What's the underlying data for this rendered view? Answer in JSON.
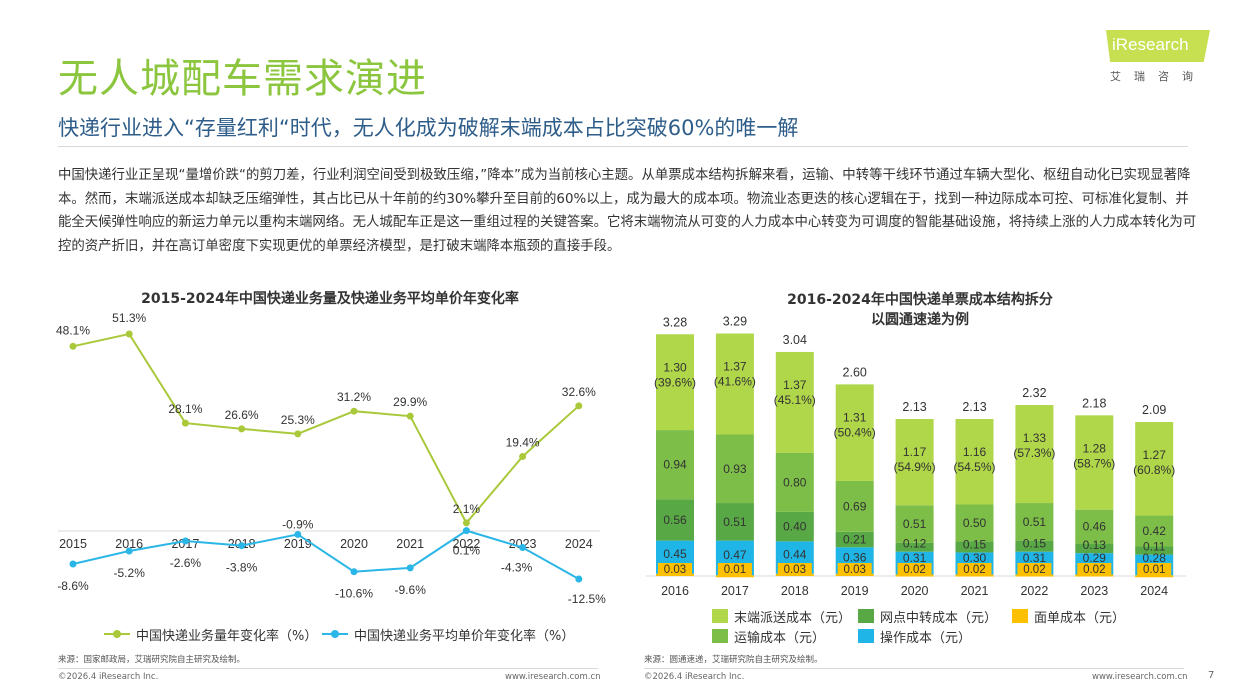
{
  "header": {
    "title": "无人城配车需求演进",
    "subtitle": "快递行业进入“存量红利“时代，无人化成为破解末端成本占比突破60%的唯一解",
    "logo_text": "iResearch",
    "logo_sub": "艾瑞咨询"
  },
  "paragraph": "中国快递行业正呈现“量增价跌“的剪刀差，行业利润空间受到极致压缩，”降本”成为当前核心主题。从单票成本结构拆解来看，运输、中转等干线环节通过车辆大型化、枢纽自动化已实现显著降本。然而，末端派送成本却缺乏压缩弹性，其占比已从十年前的约30%攀升至目前的60%以上，成为最大的成本项。物流业态更迭的核心逻辑在于，找到一种边际成本可控、可标准化复制、并能全天候弹性响应的新运力单元以重构末端网络。无人城配车正是这一重组过程的关键答案。它将末端物流从可变的人力成本中心转变为可调度的智能基础设施，将持续上涨的人力成本转化为可控的资产折旧，并在高订单密度下实现更优的单票经济模型，是打破末端降本瓶颈的直接手段。",
  "chart_data": [
    {
      "type": "line",
      "title": "2015-2024年中国快递业务量及快递业务平均单价年变化率",
      "x": [
        "2015",
        "2016",
        "2017",
        "2018",
        "2019",
        "2020",
        "2021",
        "2022",
        "2023",
        "2024"
      ],
      "series": [
        {
          "name": "中国快递业务量年变化率（%）",
          "values": [
            48.1,
            51.3,
            28.1,
            26.6,
            25.3,
            31.2,
            29.9,
            2.1,
            19.4,
            32.6
          ],
          "labels": [
            "48.1%",
            "51.3%",
            "28.1%",
            "26.6%",
            "25.3%",
            "31.2%",
            "29.9%",
            "2.1%",
            "19.4%",
            "32.6%"
          ],
          "color": "#a9c93b"
        },
        {
          "name": "中国快递业务平均单价年变化率（%）",
          "values": [
            -8.6,
            -5.2,
            -2.6,
            -3.8,
            -0.9,
            -10.6,
            -9.6,
            0.1,
            -4.3,
            -12.5
          ],
          "labels": [
            "-8.6%",
            "-5.2%",
            "-2.6%",
            "-3.8%",
            "-0.9%",
            "-10.6%",
            "-9.6%",
            "0.1%",
            "-4.3%",
            "-12.5%"
          ],
          "color": "#2ab6e6"
        }
      ],
      "legend_position": "bottom",
      "grid": false
    },
    {
      "type": "bar",
      "stacked": true,
      "title": "2016-2024年中国快递单票成本结构拆分\n以圆通速递为例",
      "title_lines": [
        "2016-2024年中国快递单票成本结构拆分",
        "以圆通速递为例"
      ],
      "categories": [
        "2016",
        "2017",
        "2018",
        "2019",
        "2020",
        "2021",
        "2022",
        "2023",
        "2024"
      ],
      "totals": [
        "3.28",
        "3.29",
        "3.04",
        "2.60",
        "2.13",
        "2.13",
        "2.32",
        "2.18",
        "2.09"
      ],
      "series": [
        {
          "name": "面单成本（元）",
          "values": [
            0.03,
            0.01,
            0.03,
            0.03,
            0.02,
            0.02,
            0.02,
            0.02,
            0.01
          ],
          "labels": [
            "0.03",
            "0.01",
            "0.03",
            "0.03",
            "0.02",
            "0.02",
            "0.02",
            "0.02",
            "0.01"
          ],
          "color": "#ffc000"
        },
        {
          "name": "操作成本（元）",
          "values": [
            0.45,
            0.47,
            0.44,
            0.36,
            0.31,
            0.3,
            0.31,
            0.29,
            0.28
          ],
          "labels": [
            "0.45",
            "0.47",
            "0.44",
            "0.36",
            "0.31",
            "0.30",
            "0.31",
            "0.29",
            "0.28"
          ],
          "color": "#1fb5e6"
        },
        {
          "name": "网点中转成本（元）",
          "values": [
            0.56,
            0.51,
            0.4,
            0.21,
            0.12,
            0.15,
            0.15,
            0.13,
            0.11
          ],
          "labels": [
            "0.56",
            "0.51",
            "0.40",
            "0.21",
            "0.12",
            "0.15",
            "0.15",
            "0.13",
            "0.11"
          ],
          "color": "#59a846"
        },
        {
          "name": "运输成本（元）",
          "values": [
            0.94,
            0.93,
            0.8,
            0.69,
            0.51,
            0.5,
            0.51,
            0.46,
            0.42
          ],
          "labels": [
            "0.94",
            "0.93",
            "0.80",
            "0.69",
            "0.51",
            "0.50",
            "0.51",
            "0.46",
            "0.42"
          ],
          "color": "#7dbe48"
        },
        {
          "name": "末端派送成本（元）",
          "values": [
            1.3,
            1.37,
            1.37,
            1.31,
            1.17,
            1.16,
            1.33,
            1.28,
            1.27
          ],
          "labels": [
            "1.30\n(39.6%)",
            "1.37\n(41.6%)",
            "1.37\n(45.1%)",
            "1.31\n(50.4%)",
            "1.17\n(54.9%)",
            "1.16\n(54.5%)",
            "1.33\n(57.3%)",
            "1.28\n(58.7%)",
            "1.27\n(60.8%)"
          ],
          "color": "#b0d64a"
        }
      ],
      "legend": [
        "末端派送成本（元）",
        "网点中转成本（元）",
        "面单成本（元）",
        "运输成本（元）",
        "操作成本（元）"
      ],
      "legend_position": "bottom",
      "grid": false
    }
  ],
  "line_legend": {
    "volume": "中国快递业务量年变化率（%）",
    "price": "中国快递业务平均单价年变化率（%）"
  },
  "bar_legend": {
    "last_mile": "末端派送成本（元）",
    "transfer": "网点中转成本（元）",
    "waybill": "面单成本（元）",
    "transport": "运输成本（元）",
    "operation": "操作成本（元）"
  },
  "footer": {
    "source_left": "来源：国家邮政局，艾瑞研究院自主研究及绘制。",
    "source_right": "来源：圆通速递，艾瑞研究院自主研究及绘制。",
    "copyright_left": "©2026.4 iResearch Inc.",
    "url_left": "www.iresearch.com.cn",
    "copyright_right": "©2026.4 iResearch Inc.",
    "url_right": "www.iresearch.com.cn",
    "page": "7"
  }
}
